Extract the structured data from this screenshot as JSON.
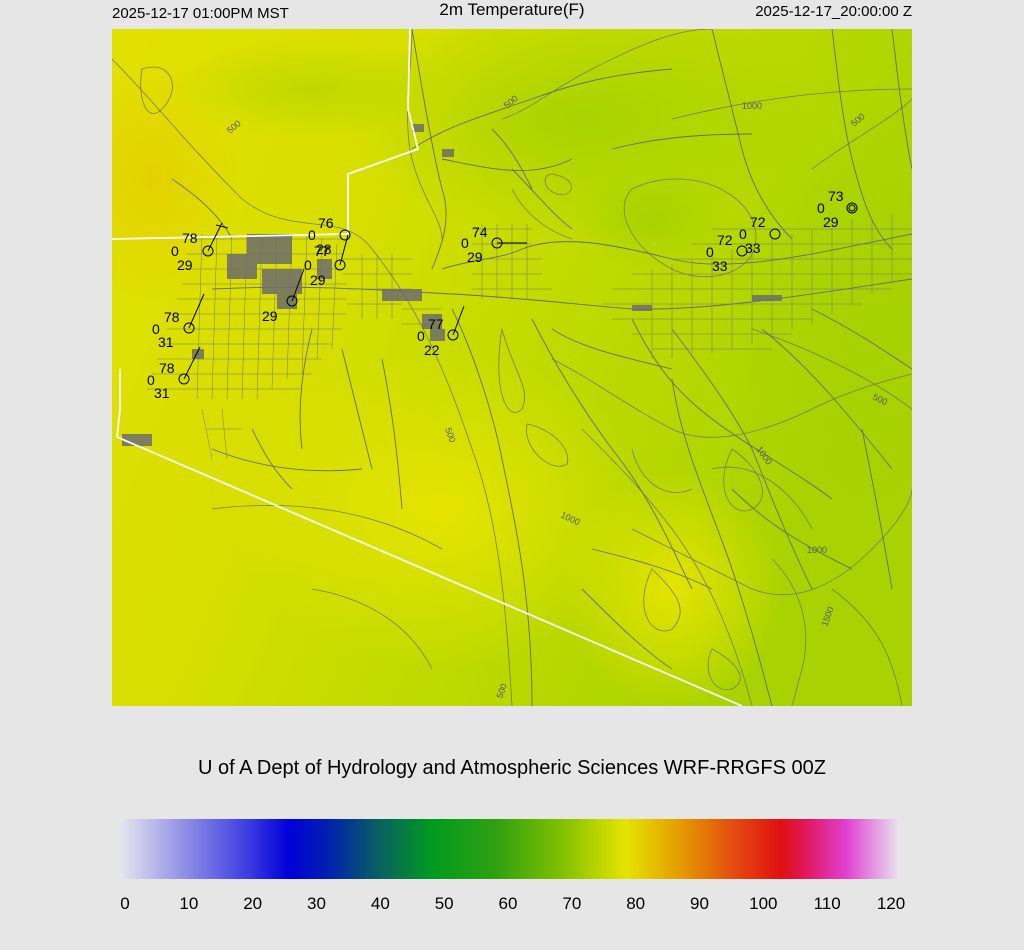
{
  "header": {
    "left": "2025-12-17 01:00PM MST",
    "title": "2m Temperature(F)",
    "right": "2025-12-17_20:00:00 Z"
  },
  "credit": "U of A Dept of Hydrology and Atmospheric Sciences WRF-RRGFS 00Z",
  "colorbar": {
    "ticks": [
      "0",
      "10",
      "20",
      "30",
      "40",
      "50",
      "60",
      "70",
      "80",
      "90",
      "100",
      "110",
      "120"
    ],
    "min": 0,
    "max": 120,
    "stops": [
      {
        "v": 0,
        "c": "#e6e6ee"
      },
      {
        "v": 10,
        "c": "#8f8fe6"
      },
      {
        "v": 20,
        "c": "#3a3ae0"
      },
      {
        "v": 26,
        "c": "#0000d8"
      },
      {
        "v": 32,
        "c": "#0020b0"
      },
      {
        "v": 40,
        "c": "#0a6060"
      },
      {
        "v": 48,
        "c": "#009a20"
      },
      {
        "v": 58,
        "c": "#30a010"
      },
      {
        "v": 68,
        "c": "#80c000"
      },
      {
        "v": 78,
        "c": "#e4e400"
      },
      {
        "v": 86,
        "c": "#e4a000"
      },
      {
        "v": 96,
        "c": "#e24010"
      },
      {
        "v": 102,
        "c": "#e01010"
      },
      {
        "v": 106,
        "c": "#e01860"
      },
      {
        "v": 112,
        "c": "#e040d0"
      },
      {
        "v": 120,
        "c": "#e8e0ee"
      }
    ]
  },
  "map": {
    "contour_labels": [
      "500",
      "500",
      "500",
      "500",
      "500",
      "500",
      "1000",
      "1000",
      "1000",
      "1000",
      "1500"
    ],
    "stations": [
      {
        "temp": "78",
        "wind": "0",
        "dew": "29"
      },
      {
        "temp": "76",
        "wind": "0",
        "dew": "28"
      },
      {
        "temp": "77",
        "wind": "0",
        "dew": "29"
      },
      {
        "temp": "",
        "wind": "",
        "dew": "29"
      },
      {
        "temp": "78",
        "wind": "0",
        "dew": "31"
      },
      {
        "temp": "78",
        "wind": "0",
        "dew": "31"
      },
      {
        "temp": "77",
        "wind": "0",
        "dew": "22"
      },
      {
        "temp": "74",
        "wind": "0",
        "dew": "29"
      },
      {
        "temp": "72",
        "wind": "0",
        "dew": "33"
      },
      {
        "temp": "72",
        "wind": "0",
        "dew": "33"
      },
      {
        "temp": "73",
        "wind": "0",
        "dew": "29"
      }
    ]
  }
}
